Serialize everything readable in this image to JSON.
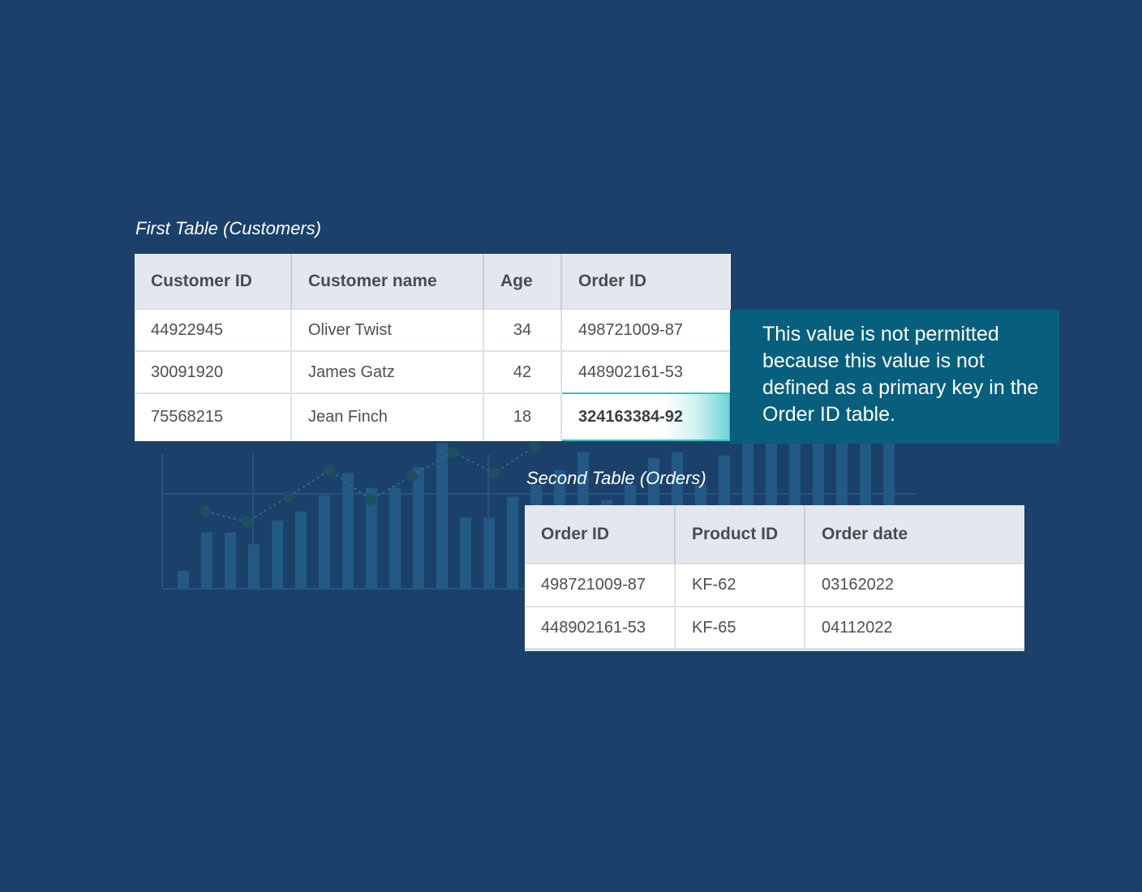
{
  "first_table": {
    "caption": "First Table (Customers)",
    "headers": [
      "Customer ID",
      "Customer name",
      "Age",
      "Order ID"
    ],
    "rows": [
      [
        "44922945",
        "Oliver Twist",
        "34",
        "498721009-87"
      ],
      [
        "30091920",
        "James Gatz",
        "42",
        "448902161-53"
      ],
      [
        "75568215",
        "Jean Finch",
        "18",
        "324163384-92"
      ]
    ]
  },
  "second_table": {
    "caption": "Second Table (Orders)",
    "headers": [
      "Order ID",
      "Product ID",
      "Order date"
    ],
    "rows": [
      [
        "498721009-87",
        "KF-62",
        "03162022"
      ],
      [
        "448902161-53",
        "KF-65",
        "04112022"
      ]
    ]
  },
  "callout": {
    "text": "This value is not permitted because this value is not defined as a primary key in the Order ID table."
  },
  "colors": {
    "background": "#1b416b",
    "callout": "#085f7d",
    "highlight": "#2ec4c4",
    "header_fill": "#e4e8ee"
  },
  "background_chart": {
    "type": "bar",
    "bar_values": [
      12,
      38,
      38,
      30,
      46,
      52,
      63,
      78,
      68,
      68,
      82,
      98,
      48,
      48,
      62,
      70,
      80,
      92,
      60,
      70,
      88,
      92,
      70,
      90,
      100,
      100,
      100,
      100,
      100,
      100,
      100,
      100,
      100,
      100
    ],
    "line_values": [
      52,
      45,
      62,
      80,
      60,
      76,
      92,
      78,
      96
    ],
    "ylim": [
      0,
      140
    ]
  }
}
